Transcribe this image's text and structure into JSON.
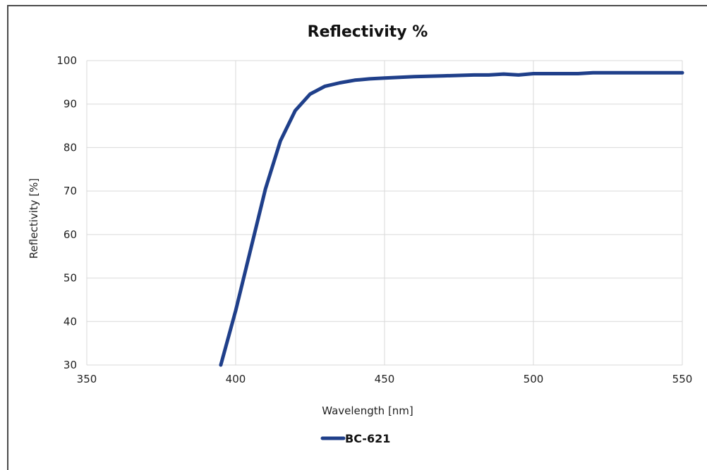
{
  "chart_data": {
    "type": "line",
    "title": "Reflectivity %",
    "xlabel": "Wavelength [nm]",
    "ylabel": "Reflectivity [%]",
    "xlim": [
      350,
      550
    ],
    "ylim": [
      30,
      100
    ],
    "x_ticks": [
      350,
      400,
      450,
      500,
      550
    ],
    "y_ticks": [
      30,
      40,
      50,
      60,
      70,
      80,
      90,
      100
    ],
    "grid": true,
    "legend_position": "bottom",
    "series": [
      {
        "name": "BC-621",
        "color": "#1f3f8a",
        "x": [
          395,
          400,
          405,
          410,
          415,
          420,
          425,
          430,
          435,
          440,
          445,
          450,
          460,
          470,
          480,
          485,
          490,
          495,
          500,
          510,
          515,
          520,
          530,
          540,
          550
        ],
        "y": [
          30,
          42.5,
          56.5,
          70.5,
          81.5,
          88.5,
          92.3,
          94.1,
          94.9,
          95.5,
          95.8,
          96.0,
          96.3,
          96.5,
          96.7,
          96.7,
          96.9,
          96.7,
          97.0,
          97.0,
          97.0,
          97.2,
          97.2,
          97.2,
          97.2
        ]
      }
    ]
  }
}
